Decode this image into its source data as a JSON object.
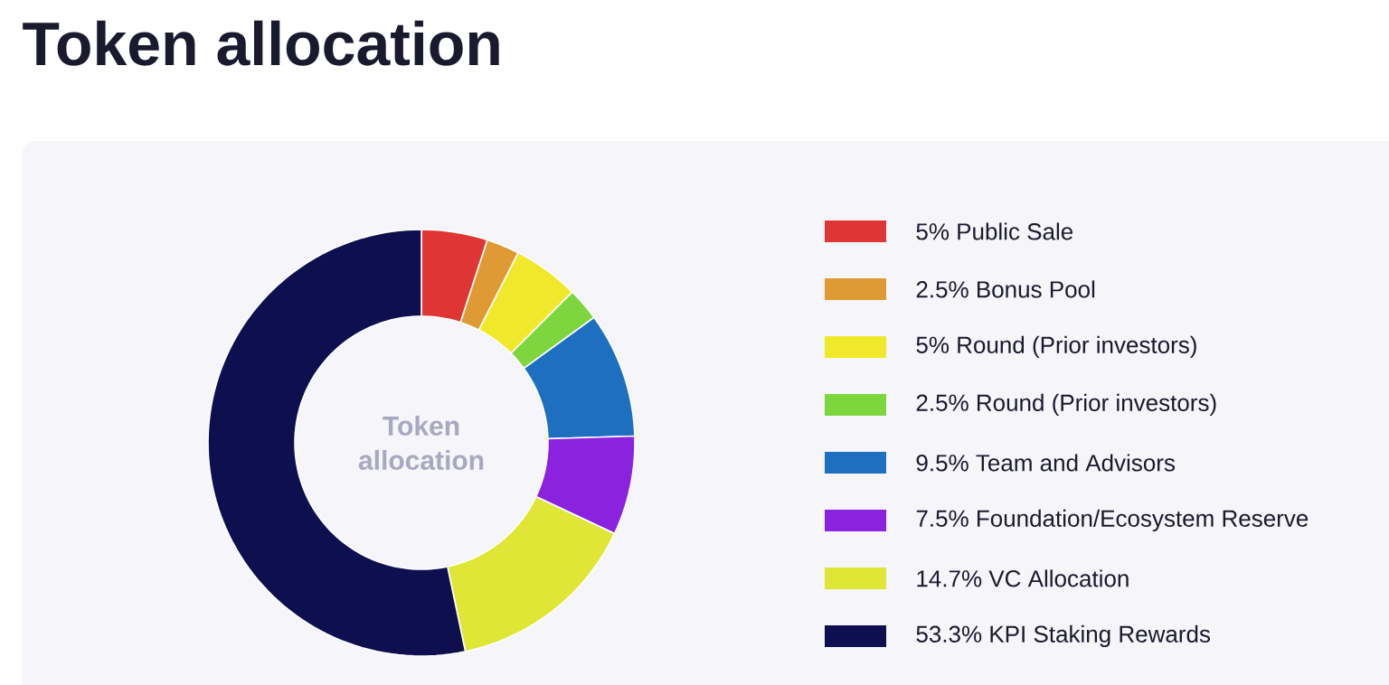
{
  "chart_data": {
    "type": "donut",
    "title": "Token allocation",
    "categories": [
      "5% Public Sale",
      "2.5% Bonus Pool",
      "5% Round (Prior investors)",
      "2.5% Round (Prior investors)",
      "9.5% Team and Advisors",
      "7.5% Foundation/Ecosystem Reserve",
      "14.7% VC Allocation",
      "53.3% KPI Staking Rewards"
    ],
    "values": [
      5,
      2.5,
      5,
      2.5,
      9.5,
      7.5,
      14.7,
      53.3
    ],
    "colors": [
      "#e03535",
      "#e09a35",
      "#f0e82a",
      "#7ed63e",
      "#1e6fc0",
      "#8a22e0",
      "#dfe635",
      "#0d0f4f"
    ],
    "annotations": [
      "Token allocation"
    ],
    "legend": "right"
  }
}
